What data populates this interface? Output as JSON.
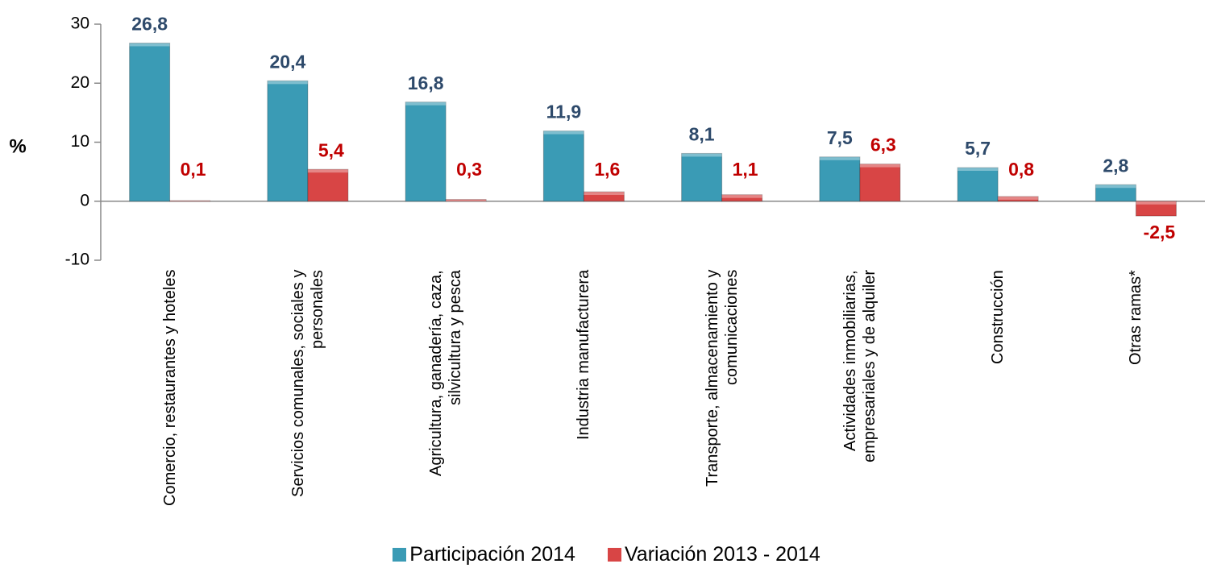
{
  "chart_data": {
    "type": "bar",
    "ylabel": "%",
    "categories": [
      "Comercio, restaurantes y hoteles",
      "Servicios comunales, sociales y personales",
      "Agricultura, ganadería, caza, silvicultura y pesca",
      "Industria manufacturera",
      "Transporte, almacenamiento y comunicaciones",
      "Actividades inmobiliarias, empresariales y de alquiler",
      "Construcción",
      "Otras ramas*"
    ],
    "series": [
      {
        "name": "Participación 2014",
        "color": "#3a9bb5",
        "label_color": "#2e4a6b",
        "values": [
          26.8,
          20.4,
          16.8,
          11.9,
          8.1,
          7.5,
          5.7,
          2.8
        ],
        "value_labels": [
          "26,8",
          "20,4",
          "16,8",
          "11,9",
          "8,1",
          "7,5",
          "5,7",
          "2,8"
        ]
      },
      {
        "name": "Variación 2013 - 2014",
        "color": "#d84545",
        "label_color": "#c00000",
        "values": [
          0.1,
          5.4,
          0.3,
          1.6,
          1.1,
          6.3,
          0.8,
          -2.5
        ],
        "value_labels": [
          "0,1",
          "5,4",
          "0,3",
          "1,6",
          "1,1",
          "6,3",
          "0,8",
          "-2,5"
        ]
      }
    ],
    "ylim": [
      -10,
      30
    ],
    "yticks": [
      -10,
      0,
      10,
      20,
      30
    ],
    "legend": "bottom"
  }
}
